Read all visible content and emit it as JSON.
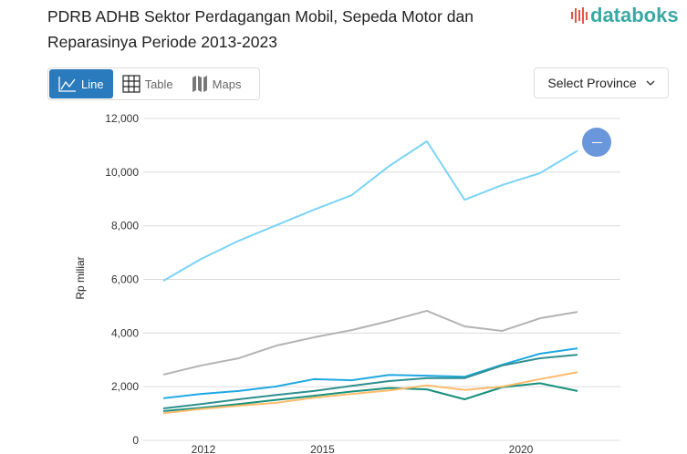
{
  "title": "PDRB ADHB Sektor Perdagangan Mobil, Sepeda Motor dan Reparasinya Periode 2013-2023",
  "logo": {
    "text": "databoks",
    "colors": {
      "icon": "#e8553f",
      "text": "#3aa9a4"
    }
  },
  "tabs": [
    {
      "label": "Line",
      "icon": "line-chart-icon",
      "active": true
    },
    {
      "label": "Table",
      "icon": "table-icon",
      "active": false
    },
    {
      "label": "Maps",
      "icon": "map-icon",
      "active": false
    }
  ],
  "province_select": {
    "label": "Select Province",
    "icon": "chevron-down-icon"
  },
  "accent_color": "#2a7bbd",
  "zoom_button": {
    "icon": "minus-icon",
    "color": "#6a96dc"
  },
  "chart_data": {
    "type": "line",
    "title": "",
    "xlabel": "",
    "ylabel": "Rp miliar",
    "ylim": [
      0,
      12000
    ],
    "yticks": [
      0,
      2000,
      4000,
      6000,
      8000,
      10000,
      12000
    ],
    "ytick_labels": [
      "0",
      "2,000",
      "4,000",
      "6,000",
      "8,000",
      "10,000",
      "12,000"
    ],
    "xticks": [
      2012,
      2015,
      2020
    ],
    "xtick_labels": [
      "2012",
      "2015",
      "2020"
    ],
    "grid": true,
    "x": [
      2011,
      2012,
      2013,
      2014,
      2015,
      2016,
      2017,
      2018,
      2019,
      2020,
      2021,
      2022
    ],
    "series": [
      {
        "color": "#7ad3f7",
        "values": [
          5950,
          6760,
          7440,
          8020,
          8600,
          9140,
          10230,
          11150,
          8970,
          9520,
          9960,
          10800
        ]
      },
      {
        "color": "#b3b3b3",
        "values": [
          2450,
          2790,
          3060,
          3530,
          3840,
          4110,
          4450,
          4830,
          4250,
          4080,
          4550,
          4790
        ]
      },
      {
        "color": "#1ea8e2",
        "values": [
          1570,
          1730,
          1840,
          2010,
          2280,
          2240,
          2440,
          2410,
          2370,
          2820,
          3230,
          3430
        ]
      },
      {
        "color": "#2f8f8f",
        "values": [
          1190,
          1350,
          1530,
          1690,
          1840,
          2030,
          2210,
          2320,
          2320,
          2790,
          3060,
          3190
        ]
      },
      {
        "color": "#17907c",
        "values": [
          1090,
          1210,
          1350,
          1510,
          1660,
          1820,
          1950,
          1900,
          1530,
          1980,
          2130,
          1840
        ]
      },
      {
        "color": "#ffbb6b",
        "values": [
          1010,
          1170,
          1290,
          1400,
          1590,
          1730,
          1860,
          2050,
          1880,
          2000,
          2280,
          2540
        ]
      }
    ]
  }
}
